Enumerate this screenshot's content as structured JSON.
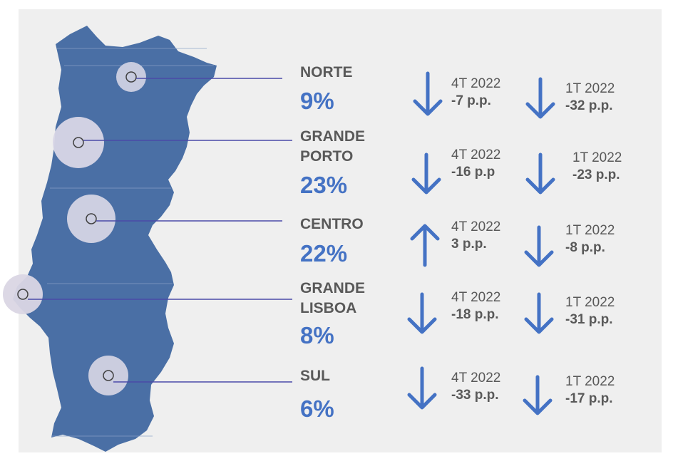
{
  "regions": [
    {
      "name": "NORTE",
      "value": "9%",
      "q4": {
        "period": "4T 2022",
        "change": "-7 p.p.",
        "direction": "down"
      },
      "q1": {
        "period": "1T 2022",
        "change": "-32 p.p.",
        "direction": "down"
      }
    },
    {
      "name": "GRANDE PORTO",
      "name_line1": "GRANDE",
      "name_line2": "PORTO",
      "value": "23%",
      "q4": {
        "period": "4T 2022",
        "change": "-16 p.p",
        "direction": "down"
      },
      "q1": {
        "period": "1T 2022",
        "change": "-23 p.p.",
        "direction": "down"
      }
    },
    {
      "name": "CENTRO",
      "value": "22%",
      "q4": {
        "period": "4T 2022",
        "change": "3 p.p.",
        "direction": "up"
      },
      "q1": {
        "period": "1T 2022",
        "change": "-8 p.p.",
        "direction": "down"
      }
    },
    {
      "name": "GRANDE LISBOA",
      "name_line1": "GRANDE",
      "name_line2": "LISBOA",
      "value": "8%",
      "q4": {
        "period": "4T 2022",
        "change": "-18 p.p.",
        "direction": "down"
      },
      "q1": {
        "period": "1T 2022",
        "change": "-31 p.p.",
        "direction": "down"
      }
    },
    {
      "name": "SUL",
      "value": "6%",
      "q4": {
        "period": "4T 2022",
        "change": "-33 p.p.",
        "direction": "down"
      },
      "q1": {
        "period": "1T 2022",
        "change": "-17 p.p.",
        "direction": "down"
      }
    }
  ],
  "colors": {
    "map": "#4a6fa5",
    "accent": "#4472c4",
    "text": "#595959",
    "panel": "#efefef"
  }
}
